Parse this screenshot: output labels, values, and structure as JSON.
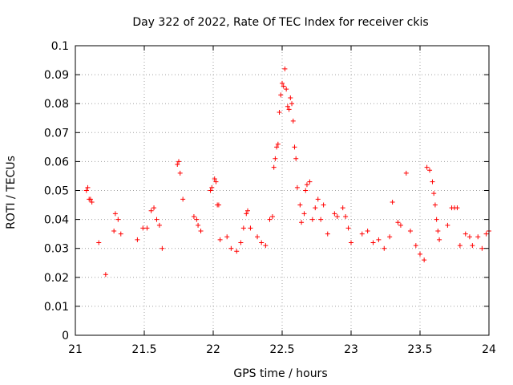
{
  "chart_data": {
    "type": "scatter",
    "title": "Day 322 of 2022, Rate Of TEC Index for receiver ckis",
    "xlabel": "GPS time / hours",
    "ylabel": "ROTI / TECUs",
    "xlim": [
      21,
      24
    ],
    "ylim": [
      0,
      0.1
    ],
    "xticks": [
      "21",
      "21.5",
      "22",
      "22.5",
      "23",
      "23.5",
      "24"
    ],
    "yticks": [
      "0",
      "0.01",
      "0.02",
      "0.03",
      "0.04",
      "0.05",
      "0.06",
      "0.07",
      "0.08",
      "0.09",
      "0.1"
    ],
    "grid": true,
    "marker": "+",
    "color": "#ff0000",
    "series": [
      {
        "points": [
          [
            21.08,
            0.05
          ],
          [
            21.09,
            0.051
          ],
          [
            21.11,
            0.047
          ],
          [
            21.12,
            0.046
          ],
          [
            21.1,
            0.047
          ],
          [
            21.17,
            0.032
          ],
          [
            21.22,
            0.021
          ],
          [
            21.28,
            0.036
          ],
          [
            21.29,
            0.042
          ],
          [
            21.31,
            0.04
          ],
          [
            21.33,
            0.035
          ],
          [
            21.45,
            0.033
          ],
          [
            21.49,
            0.037
          ],
          [
            21.52,
            0.037
          ],
          [
            21.55,
            0.043
          ],
          [
            21.57,
            0.044
          ],
          [
            21.59,
            0.04
          ],
          [
            21.61,
            0.038
          ],
          [
            21.63,
            0.03
          ],
          [
            21.74,
            0.059
          ],
          [
            21.75,
            0.06
          ],
          [
            21.76,
            0.056
          ],
          [
            21.78,
            0.047
          ],
          [
            21.86,
            0.041
          ],
          [
            21.88,
            0.04
          ],
          [
            21.89,
            0.038
          ],
          [
            21.91,
            0.036
          ],
          [
            21.98,
            0.05
          ],
          [
            21.99,
            0.051
          ],
          [
            22.01,
            0.054
          ],
          [
            22.02,
            0.053
          ],
          [
            22.03,
            0.045
          ],
          [
            22.04,
            0.045
          ],
          [
            22.05,
            0.033
          ],
          [
            22.1,
            0.034
          ],
          [
            22.13,
            0.03
          ],
          [
            22.17,
            0.029
          ],
          [
            22.2,
            0.032
          ],
          [
            22.22,
            0.037
          ],
          [
            22.24,
            0.042
          ],
          [
            22.25,
            0.043
          ],
          [
            22.27,
            0.037
          ],
          [
            22.32,
            0.034
          ],
          [
            22.35,
            0.032
          ],
          [
            22.38,
            0.031
          ],
          [
            22.41,
            0.04
          ],
          [
            22.43,
            0.041
          ],
          [
            22.44,
            0.058
          ],
          [
            22.45,
            0.061
          ],
          [
            22.46,
            0.065
          ],
          [
            22.47,
            0.066
          ],
          [
            22.48,
            0.077
          ],
          [
            22.49,
            0.083
          ],
          [
            22.5,
            0.087
          ],
          [
            22.51,
            0.086
          ],
          [
            22.52,
            0.092
          ],
          [
            22.53,
            0.085
          ],
          [
            22.54,
            0.079
          ],
          [
            22.55,
            0.078
          ],
          [
            22.56,
            0.082
          ],
          [
            22.57,
            0.08
          ],
          [
            22.58,
            0.074
          ],
          [
            22.59,
            0.065
          ],
          [
            22.6,
            0.061
          ],
          [
            22.61,
            0.051
          ],
          [
            22.63,
            0.045
          ],
          [
            22.64,
            0.039
          ],
          [
            22.66,
            0.042
          ],
          [
            22.67,
            0.05
          ],
          [
            22.68,
            0.052
          ],
          [
            22.7,
            0.053
          ],
          [
            22.72,
            0.04
          ],
          [
            22.74,
            0.044
          ],
          [
            22.76,
            0.047
          ],
          [
            22.78,
            0.04
          ],
          [
            22.8,
            0.045
          ],
          [
            22.83,
            0.035
          ],
          [
            22.88,
            0.042
          ],
          [
            22.9,
            0.041
          ],
          [
            22.94,
            0.044
          ],
          [
            22.96,
            0.041
          ],
          [
            22.98,
            0.037
          ],
          [
            23.0,
            0.032
          ],
          [
            23.08,
            0.035
          ],
          [
            23.12,
            0.036
          ],
          [
            23.16,
            0.032
          ],
          [
            23.2,
            0.033
          ],
          [
            23.24,
            0.03
          ],
          [
            23.28,
            0.034
          ],
          [
            23.3,
            0.046
          ],
          [
            23.34,
            0.039
          ],
          [
            23.36,
            0.038
          ],
          [
            23.4,
            0.056
          ],
          [
            23.43,
            0.036
          ],
          [
            23.47,
            0.031
          ],
          [
            23.5,
            0.028
          ],
          [
            23.53,
            0.026
          ],
          [
            23.55,
            0.058
          ],
          [
            23.57,
            0.057
          ],
          [
            23.59,
            0.053
          ],
          [
            23.6,
            0.049
          ],
          [
            23.61,
            0.045
          ],
          [
            23.62,
            0.04
          ],
          [
            23.63,
            0.036
          ],
          [
            23.64,
            0.033
          ],
          [
            23.7,
            0.038
          ],
          [
            23.73,
            0.044
          ],
          [
            23.75,
            0.044
          ],
          [
            23.77,
            0.044
          ],
          [
            23.79,
            0.031
          ],
          [
            23.83,
            0.035
          ],
          [
            23.86,
            0.034
          ],
          [
            23.88,
            0.031
          ],
          [
            23.92,
            0.034
          ],
          [
            23.95,
            0.03
          ],
          [
            23.98,
            0.035
          ],
          [
            24.0,
            0.036
          ]
        ]
      }
    ]
  }
}
